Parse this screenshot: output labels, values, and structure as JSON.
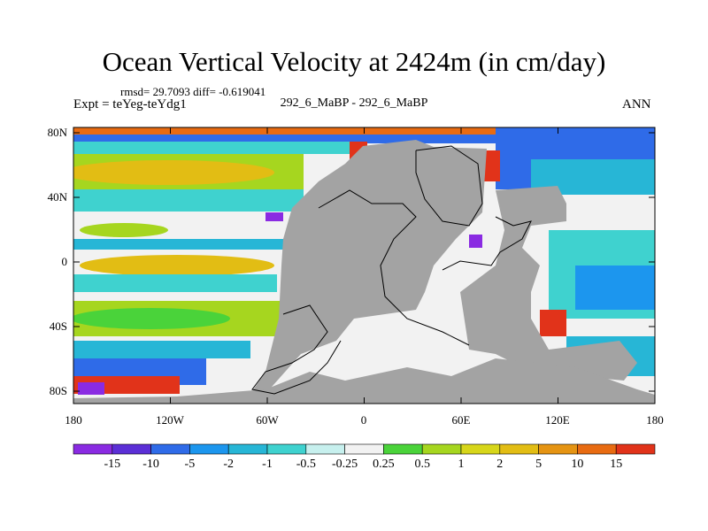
{
  "title": "Ocean Vertical Velocity at 2424m (in cm/day)",
  "stats": "rmsd= 29.7093 diff= -0.619041",
  "experiment": "Expt = teYeg-teYdg1",
  "case": "292_6_MaBP - 292_6_MaBP",
  "season": "ANN",
  "lat_labels": [
    "80N",
    "40N",
    "0",
    "40S",
    "80S"
  ],
  "lon_labels": [
    "180",
    "120W",
    "60W",
    "0",
    "60E",
    "120E",
    "180"
  ],
  "colorbar": {
    "colors": [
      "#8a2be2",
      "#5b2fd6",
      "#2f6be8",
      "#1c96ee",
      "#27b6d6",
      "#3fd2cf",
      "#c7f0ee",
      "#f2f2f2",
      "#4ad33a",
      "#a6d61f",
      "#d7d61a",
      "#e2bd14",
      "#e59413",
      "#e86b12",
      "#e1331a"
    ],
    "labels": [
      "-15",
      "-10",
      "-5",
      "-2",
      "-1",
      "-0.5",
      "-0.25",
      "0.25",
      "0.5",
      "1",
      "2",
      "5",
      "10",
      "15"
    ]
  },
  "land_color": "#a3a3a3"
}
